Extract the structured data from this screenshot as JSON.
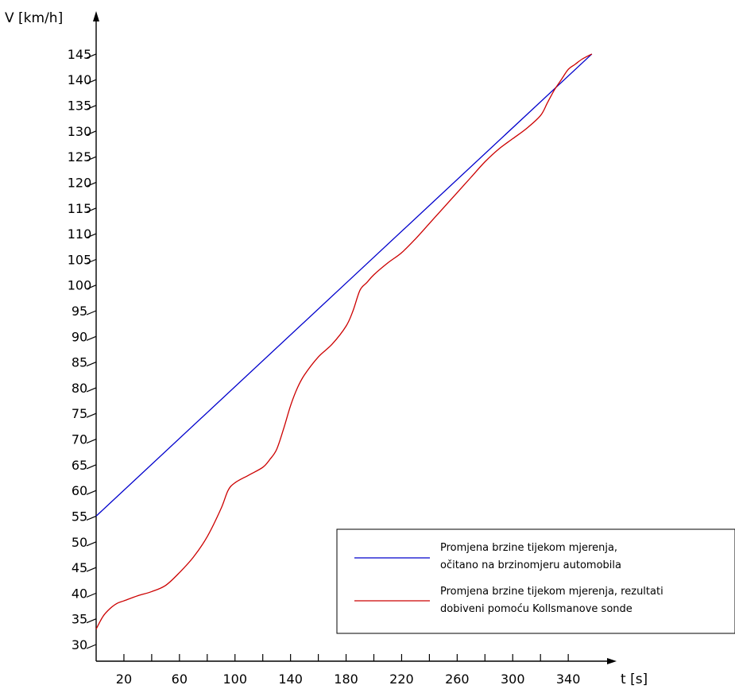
{
  "chart_data": {
    "type": "line",
    "ylabel": "V [km/h]",
    "xlabel": "t [s]",
    "xlim": [
      0,
      380
    ],
    "ylim": [
      25,
      150
    ],
    "x_ticks": [
      20,
      40,
      60,
      80,
      100,
      120,
      140,
      160,
      180,
      200,
      220,
      240,
      260,
      280,
      300,
      320,
      340
    ],
    "x_tick_labels": [
      "20",
      "60",
      "100",
      "140",
      "180",
      "220",
      "260",
      "300",
      "340"
    ],
    "y_ticks": [
      30,
      35,
      40,
      45,
      50,
      55,
      60,
      65,
      70,
      75,
      80,
      85,
      90,
      95,
      100,
      105,
      110,
      115,
      120,
      125,
      130,
      135,
      140,
      145
    ],
    "y_tick_labels": [
      "30",
      "35",
      "40",
      "45",
      "50",
      "55",
      "60",
      "65",
      "70",
      "75",
      "80",
      "85",
      "90",
      "95",
      "100",
      "105",
      "110",
      "115",
      "120",
      "125",
      "130",
      "135",
      "140",
      "145"
    ],
    "grid": false,
    "legend_position": "bottom-right",
    "series": [
      {
        "name": "Promjena brzine tijekom mjerenja, očitano na brzinomjeru automobila",
        "legend_lines": [
          "Promjena brzine tijekom mjerenja,",
          "očitano na brzinomjeru automobila"
        ],
        "color": "#0000cc",
        "x": [
          0,
          357
        ],
        "y": [
          55,
          145
        ]
      },
      {
        "name": "Promjena brzine tijekom mjerenja, rezultati dobiveni pomoću Kollsmanove sonde",
        "legend_lines": [
          "Promjena brzine tijekom mjerenja, rezultati",
          "dobiveni pomoću Kollsmanove sonde"
        ],
        "color": "#cc0000",
        "x": [
          0,
          5,
          10,
          15,
          20,
          30,
          40,
          50,
          60,
          70,
          80,
          90,
          95,
          100,
          110,
          120,
          125,
          130,
          135,
          140,
          145,
          150,
          160,
          170,
          180,
          185,
          190,
          195,
          200,
          210,
          220,
          230,
          240,
          250,
          260,
          270,
          280,
          290,
          300,
          310,
          320,
          325,
          330,
          335,
          340,
          345,
          350,
          357
        ],
        "y": [
          33,
          35.5,
          37,
          38,
          38.5,
          39.5,
          40.3,
          41.5,
          44,
          47,
          51,
          56.5,
          60,
          61.5,
          63,
          64.5,
          66,
          68,
          72,
          76.5,
          80,
          82.5,
          86,
          88.5,
          92,
          95,
          99,
          100.5,
          102,
          104.3,
          106.3,
          109,
          112,
          115,
          118,
          121,
          124,
          126.5,
          128.5,
          130.5,
          133,
          135.5,
          138,
          140,
          142,
          143,
          144,
          145
        ]
      }
    ]
  }
}
